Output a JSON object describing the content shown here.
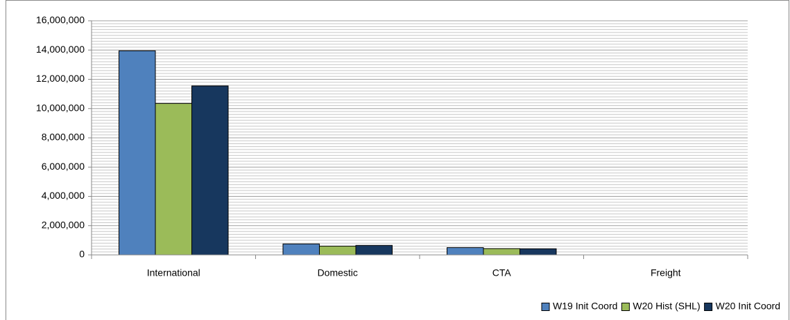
{
  "chart_data": {
    "type": "bar",
    "categories": [
      "International",
      "Domestic",
      "CTA",
      "Freight"
    ],
    "series": [
      {
        "name": "W19 Init Coord",
        "color": "#4f81bd",
        "values": [
          13950000,
          750000,
          500000,
          0
        ]
      },
      {
        "name": "W20 Hist (SHL)",
        "color": "#9bbb59",
        "values": [
          10350000,
          600000,
          430000,
          0
        ]
      },
      {
        "name": "W20 Init Coord",
        "color": "#17375e",
        "values": [
          11550000,
          650000,
          420000,
          0
        ]
      }
    ],
    "ylim": [
      0,
      16000000
    ],
    "yticks": [
      0,
      {
        "value": 2000000,
        "label": "2,000,000"
      },
      {
        "value": 4000000,
        "label": "4,000,000"
      },
      {
        "value": 6000000,
        "label": "6,000,000"
      },
      {
        "value": 8000000,
        "label": "8,000,000"
      },
      {
        "value": 10000000,
        "label": "10,000,000"
      },
      {
        "value": 12000000,
        "label": "12,000,000"
      },
      {
        "value": 14000000,
        "label": "14,000,000"
      },
      {
        "value": 16000000,
        "label": "16,000,000"
      }
    ],
    "grid": true,
    "minor_grid_per_tick": 10,
    "legend": "bottom-right"
  }
}
